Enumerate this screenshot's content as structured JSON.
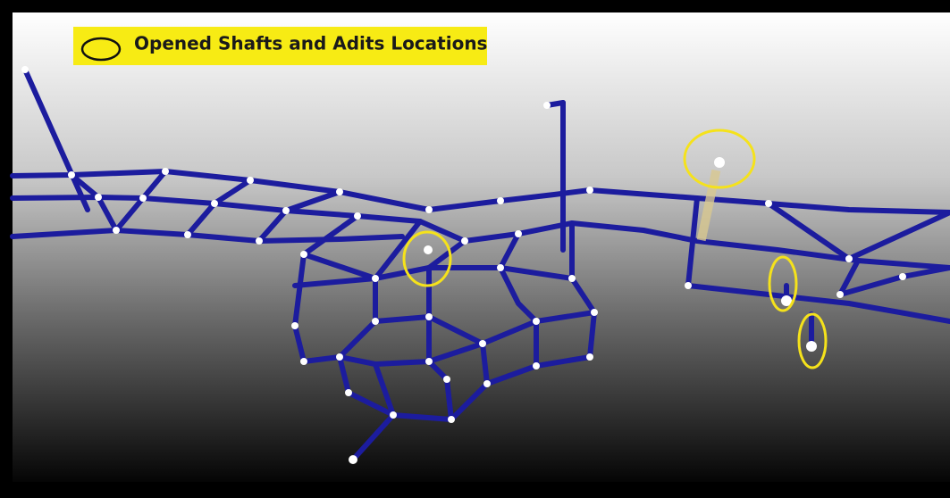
{
  "legend": {
    "label": "Opened Shafts and Adits Locations"
  }
}
